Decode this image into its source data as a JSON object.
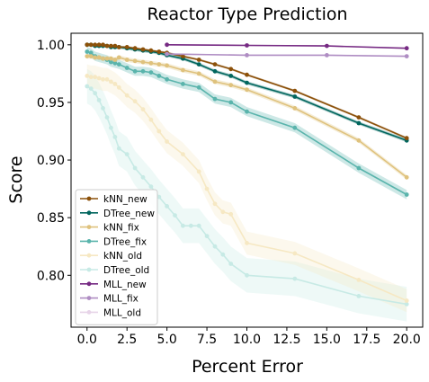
{
  "chart_data": {
    "type": "line",
    "title": "Reactor Type Prediction",
    "xlabel": "Percent Error",
    "ylabel": "Score",
    "xlim": [
      -1,
      21
    ],
    "ylim": [
      0.755,
      1.01
    ],
    "xticks": [
      0.0,
      2.5,
      5.0,
      7.5,
      10.0,
      12.5,
      15.0,
      17.5,
      20.0
    ],
    "xtick_labels": [
      "0.0",
      "2.5",
      "5.0",
      "7.5",
      "10.0",
      "12.5",
      "15.0",
      "17.5",
      "20.0"
    ],
    "yticks": [
      0.8,
      0.85,
      0.9,
      0.95,
      1.0
    ],
    "ytick_labels": [
      "0.80",
      "0.85",
      "0.90",
      "0.95",
      "1.00"
    ],
    "grid": false,
    "legend_position": "lower-left",
    "series": [
      {
        "name": "kNN_new",
        "color": "#8c510a",
        "band": 0.001,
        "x": [
          0,
          0.25,
          0.5,
          0.75,
          1,
          1.25,
          1.5,
          1.75,
          2,
          2.5,
          3,
          3.5,
          4,
          4.5,
          5,
          6,
          7,
          8,
          9,
          10,
          13,
          17,
          20
        ],
        "y": [
          1.0,
          1.0,
          1.0,
          1.0,
          1.0,
          0.999,
          0.999,
          0.999,
          0.998,
          0.998,
          0.997,
          0.996,
          0.995,
          0.994,
          0.993,
          0.99,
          0.987,
          0.983,
          0.979,
          0.974,
          0.96,
          0.937,
          0.919
        ]
      },
      {
        "name": "DTree_new",
        "color": "#01665e",
        "band": 0.0015,
        "x": [
          0,
          0.25,
          0.5,
          0.75,
          1,
          1.25,
          1.5,
          1.75,
          2,
          2.5,
          3,
          3.5,
          4,
          4.5,
          5,
          6,
          7,
          8,
          9,
          10,
          13,
          17,
          20
        ],
        "y": [
          1.0,
          1.0,
          0.999,
          0.999,
          0.999,
          0.999,
          0.998,
          0.998,
          0.998,
          0.997,
          0.996,
          0.995,
          0.994,
          0.993,
          0.991,
          0.988,
          0.983,
          0.977,
          0.973,
          0.967,
          0.955,
          0.932,
          0.917
        ]
      },
      {
        "name": "kNN_fix",
        "color": "#dfc27d",
        "band": 0.002,
        "x": [
          0,
          0.25,
          0.5,
          0.75,
          1,
          1.25,
          1.5,
          1.75,
          2,
          2.5,
          3,
          3.5,
          4,
          4.5,
          5,
          6,
          7,
          8,
          9,
          10,
          13,
          17,
          20
        ],
        "y": [
          0.99,
          0.99,
          0.989,
          0.989,
          0.988,
          0.988,
          0.988,
          0.987,
          0.989,
          0.987,
          0.986,
          0.985,
          0.984,
          0.983,
          0.982,
          0.978,
          0.975,
          0.968,
          0.965,
          0.961,
          0.945,
          0.917,
          0.885
        ]
      },
      {
        "name": "DTree_fix",
        "color": "#5ab4ac",
        "band": 0.004,
        "x": [
          0,
          0.25,
          0.5,
          0.75,
          1,
          1.25,
          1.5,
          1.75,
          2,
          2.5,
          3,
          3.5,
          4,
          4.5,
          5,
          6,
          7,
          8,
          9,
          10,
          13,
          17,
          20
        ],
        "y": [
          0.994,
          0.993,
          0.99,
          0.989,
          0.988,
          0.987,
          0.985,
          0.984,
          0.983,
          0.98,
          0.977,
          0.977,
          0.976,
          0.973,
          0.97,
          0.966,
          0.963,
          0.953,
          0.95,
          0.942,
          0.928,
          0.893,
          0.87
        ]
      },
      {
        "name": "kNN_old",
        "color": "#f6e8c3",
        "band": 0.01,
        "x": [
          0,
          0.25,
          0.5,
          0.75,
          1,
          1.25,
          1.5,
          1.75,
          2,
          2.5,
          3,
          3.5,
          4,
          4.5,
          5,
          6,
          7,
          7.5,
          8,
          8.5,
          9,
          10,
          13,
          17,
          20
        ],
        "y": [
          0.973,
          0.972,
          0.972,
          0.971,
          0.97,
          0.97,
          0.968,
          0.966,
          0.963,
          0.956,
          0.951,
          0.944,
          0.935,
          0.925,
          0.916,
          0.905,
          0.89,
          0.875,
          0.862,
          0.855,
          0.853,
          0.828,
          0.819,
          0.796,
          0.778
        ]
      },
      {
        "name": "DTree_old",
        "color": "#c7eae5",
        "band": 0.015,
        "x": [
          0,
          0.25,
          0.5,
          0.75,
          1,
          1.25,
          1.5,
          1.75,
          2,
          2.5,
          3,
          3.5,
          4,
          4.5,
          5,
          5.5,
          6,
          6.5,
          7,
          7.5,
          8,
          8.5,
          9,
          10,
          13,
          17,
          20
        ],
        "y": [
          0.964,
          0.962,
          0.958,
          0.952,
          0.945,
          0.937,
          0.928,
          0.92,
          0.91,
          0.905,
          0.893,
          0.885,
          0.877,
          0.868,
          0.86,
          0.852,
          0.843,
          0.843,
          0.843,
          0.834,
          0.825,
          0.818,
          0.81,
          0.8,
          0.797,
          0.782,
          0.775
        ]
      },
      {
        "name": "MLL_new",
        "color": "#762a83",
        "band": 0.0005,
        "x": [
          5,
          10,
          15,
          20
        ],
        "y": [
          1.0,
          0.9995,
          0.999,
          0.997
        ]
      },
      {
        "name": "MLL_fix",
        "color": "#af8dc3",
        "band": 0.0005,
        "x": [
          5,
          10,
          15,
          20
        ],
        "y": [
          0.992,
          0.991,
          0.991,
          0.99
        ]
      },
      {
        "name": "MLL_old",
        "color": "#e7d4e8",
        "band": 0.0,
        "x": [],
        "y": []
      }
    ]
  }
}
